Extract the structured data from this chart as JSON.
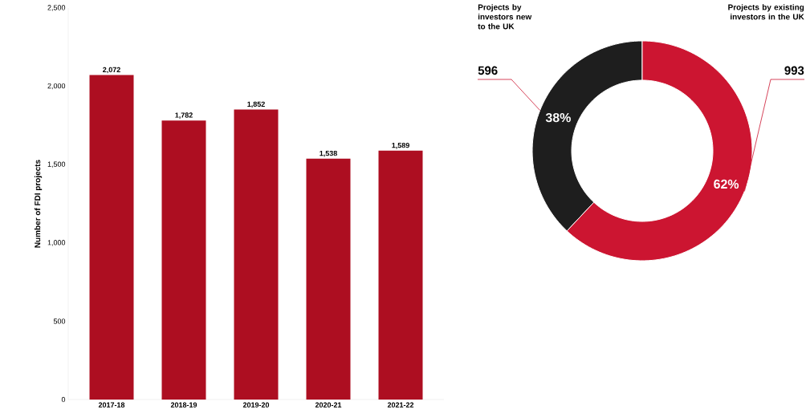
{
  "chart_data": [
    {
      "type": "bar",
      "ylabel": "Number of FDI projects",
      "categories": [
        "2017-18",
        "2018-19",
        "2019-20",
        "2020-21",
        "2021-22"
      ],
      "values": [
        2072,
        1782,
        1852,
        1538,
        1589
      ],
      "value_labels": [
        "2,072",
        "1,782",
        "1,852",
        "1,538",
        "1,589"
      ],
      "color": "#ad0e21",
      "ylim": [
        0,
        2500
      ],
      "yticks": [
        0,
        500,
        {
          "value": 1000,
          "label": "1,000"
        },
        {
          "value": 1500,
          "label": "1,500"
        },
        {
          "value": 2000,
          "label": "2,000"
        },
        {
          "value": 2500,
          "label": "2,500"
        }
      ]
    },
    {
      "type": "donut",
      "categories": [
        "Projects by investors new to the UK",
        "Projects by existing investors in the UK"
      ],
      "values": [
        38,
        62
      ],
      "colors": [
        "#1e1e1e",
        "#cc1531"
      ],
      "value_labels": [
        "38%",
        "62%"
      ],
      "annotations": [
        "596",
        "993"
      ]
    }
  ]
}
